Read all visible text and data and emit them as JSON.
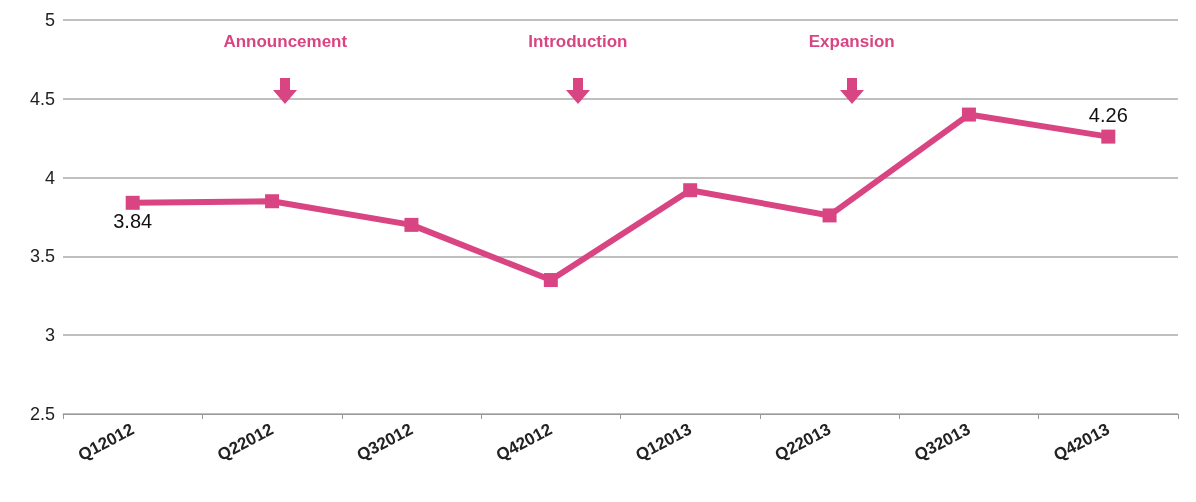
{
  "chart_data": {
    "type": "line",
    "categories": [
      "Q12012",
      "Q22012",
      "Q32012",
      "Q42012",
      "Q12013",
      "Q22013",
      "Q32013",
      "Q42013"
    ],
    "series": [
      {
        "color": "#d94582",
        "values": [
          3.84,
          3.85,
          3.7,
          3.35,
          3.92,
          3.76,
          4.4,
          4.26
        ],
        "value_labels": [
          "3.84",
          null,
          null,
          null,
          null,
          null,
          null,
          "4.26"
        ]
      }
    ],
    "ylim": [
      2.5,
      5
    ],
    "yticks": [
      2.5,
      3,
      3.5,
      4,
      4.5,
      5
    ],
    "grid": "y",
    "marker": "square",
    "line_style": "solid",
    "annotations": [
      "Announcement",
      "Introduction",
      "Expansion"
    ]
  }
}
